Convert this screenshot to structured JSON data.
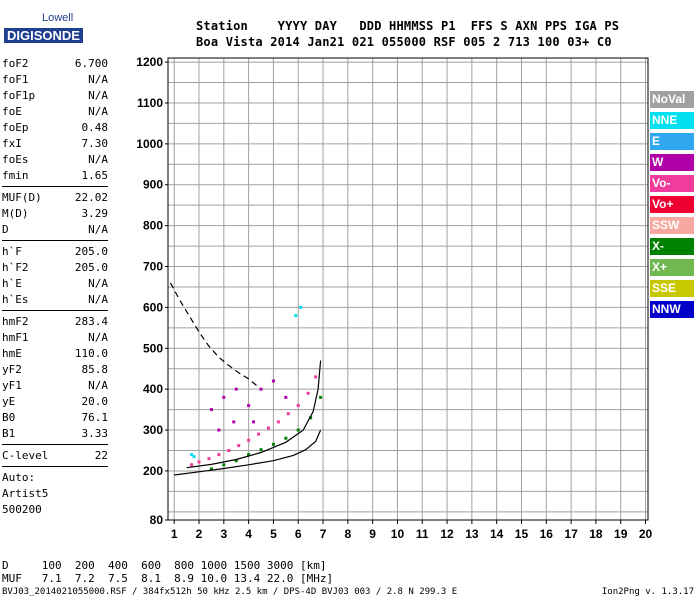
{
  "logo": {
    "line1": "Lowell",
    "line2": "DIGISONDE"
  },
  "header": {
    "labels": "Station    YYYY DAY   DDD HHMMSS P1  FFS S AXN PPS IGA PS",
    "values": "Boa Vista 2014 Jan21 021 055000 RSF 005 2 713 100 03+ C0"
  },
  "params": [
    {
      "name": "foF2",
      "value": "6.700"
    },
    {
      "name": "foF1",
      "value": "N/A"
    },
    {
      "name": "foF1p",
      "value": "N/A"
    },
    {
      "name": "foE",
      "value": "N/A"
    },
    {
      "name": "foEp",
      "value": "0.48"
    },
    {
      "name": "fxI",
      "value": "7.30"
    },
    {
      "name": "foEs",
      "value": "N/A"
    },
    {
      "name": "fmin",
      "value": "1.65"
    },
    {
      "sep": true
    },
    {
      "name": "MUF(D)",
      "value": "22.02"
    },
    {
      "name": "M(D)",
      "value": "3.29"
    },
    {
      "name": "D",
      "value": "N/A"
    },
    {
      "sep": true
    },
    {
      "name": "h`F",
      "value": "205.0"
    },
    {
      "name": "h`F2",
      "value": "205.0"
    },
    {
      "name": "h`E",
      "value": "N/A"
    },
    {
      "name": "h`Es",
      "value": "N/A"
    },
    {
      "sep": true
    },
    {
      "name": "hmF2",
      "value": "283.4"
    },
    {
      "name": "hmF1",
      "value": "N/A"
    },
    {
      "name": "hmE",
      "value": "110.0"
    },
    {
      "name": "yF2",
      "value": "85.8"
    },
    {
      "name": "yF1",
      "value": "N/A"
    },
    {
      "name": "yE",
      "value": "20.0"
    },
    {
      "name": "B0",
      "value": "76.1"
    },
    {
      "name": "B1",
      "value": "3.33"
    },
    {
      "sep": true
    },
    {
      "name": "C-level",
      "value": "22"
    },
    {
      "sep": true
    },
    {
      "text": "Auto:"
    },
    {
      "text": "Artist5"
    },
    {
      "text": "500200"
    }
  ],
  "legend": [
    {
      "label": "NoVal",
      "color": "#a0a0a0"
    },
    {
      "label": "NNE",
      "color": "#00e0f0"
    },
    {
      "label": "E",
      "color": "#30a8f0"
    },
    {
      "label": "W",
      "color": "#b000a8"
    },
    {
      "label": "Vo-",
      "color": "#f03c9c"
    },
    {
      "label": "Vo+",
      "color": "#ee0033"
    },
    {
      "label": "SSW",
      "color": "#f6a8a0"
    },
    {
      "label": "X-",
      "color": "#008000"
    },
    {
      "label": "X+",
      "color": "#70b850"
    },
    {
      "label": "SSE",
      "color": "#c8c800"
    },
    {
      "label": "NNW",
      "color": "#0000c8"
    }
  ],
  "bottom": {
    "d_row": "D     100  200  400  600  800 1000 1500 3000 [km]",
    "muf_row": "MUF   7.1  7.2  7.5  8.1  8.9 10.0 13.4 22.0 [MHz]"
  },
  "footer": {
    "left": "BVJ03_2014021055000.RSF / 384fx512h 50 kHz 2.5 km / DPS-4D BVJ03 003 / 2.8 N 299.3 E",
    "right": "Ion2Png v. 1.3.17"
  },
  "chart_data": {
    "type": "scatter",
    "xlim": [
      0.75,
      20.1
    ],
    "ylim": [
      80,
      1210
    ],
    "x_ticks": [
      1,
      2,
      3,
      4,
      5,
      6,
      7,
      8,
      9,
      10,
      11,
      12,
      13,
      14,
      15,
      16,
      17,
      18,
      19,
      20
    ],
    "y_ticks": [
      80,
      200,
      300,
      400,
      500,
      600,
      700,
      800,
      900,
      1000,
      1100,
      1200
    ],
    "grid": true,
    "series": [
      {
        "name": "Vo-",
        "color": "#f03c9c",
        "points": [
          [
            1.7,
            215
          ],
          [
            2.0,
            222
          ],
          [
            2.4,
            230
          ],
          [
            2.8,
            240
          ],
          [
            3.2,
            250
          ],
          [
            3.6,
            262
          ],
          [
            4.0,
            275
          ],
          [
            4.4,
            290
          ],
          [
            4.8,
            305
          ],
          [
            5.2,
            320
          ],
          [
            5.6,
            340
          ],
          [
            6.0,
            360
          ],
          [
            6.4,
            390
          ],
          [
            6.7,
            430
          ]
        ]
      },
      {
        "name": "W",
        "color": "#b000a8",
        "points": [
          [
            2.5,
            350
          ],
          [
            3.0,
            380
          ],
          [
            3.5,
            400
          ],
          [
            4.0,
            360
          ],
          [
            4.5,
            400
          ],
          [
            5.0,
            420
          ],
          [
            2.8,
            300
          ],
          [
            3.4,
            320
          ],
          [
            4.2,
            320
          ],
          [
            5.5,
            380
          ]
        ]
      },
      {
        "name": "X-",
        "color": "#008000",
        "points": [
          [
            2.5,
            205
          ],
          [
            3.0,
            215
          ],
          [
            3.5,
            225
          ],
          [
            4.0,
            240
          ],
          [
            4.5,
            252
          ],
          [
            5.0,
            265
          ],
          [
            5.5,
            280
          ],
          [
            6.0,
            300
          ],
          [
            6.5,
            330
          ],
          [
            6.9,
            380
          ]
        ]
      },
      {
        "name": "NNE",
        "color": "#00e0f0",
        "points": [
          [
            1.7,
            240
          ],
          [
            1.8,
            235
          ],
          [
            5.9,
            580
          ],
          [
            6.1,
            600
          ]
        ]
      }
    ],
    "curves": {
      "profile_solid": [
        [
          1.0,
          190
        ],
        [
          2.0,
          198
        ],
        [
          3.0,
          206
        ],
        [
          4.0,
          215
        ],
        [
          5.0,
          225
        ],
        [
          5.8,
          238
        ],
        [
          6.3,
          252
        ],
        [
          6.7,
          272
        ],
        [
          6.9,
          300
        ]
      ],
      "trace_solid": [
        [
          1.5,
          208
        ],
        [
          2.5,
          216
        ],
        [
          3.5,
          228
        ],
        [
          4.5,
          245
        ],
        [
          5.5,
          270
        ],
        [
          6.2,
          300
        ],
        [
          6.6,
          345
        ],
        [
          6.8,
          400
        ],
        [
          6.9,
          470
        ]
      ],
      "profile_dashed": [
        [
          0.85,
          660
        ],
        [
          1.2,
          620
        ],
        [
          1.6,
          580
        ],
        [
          2.0,
          540
        ],
        [
          2.4,
          505
        ],
        [
          2.8,
          478
        ],
        [
          3.2,
          458
        ],
        [
          3.6,
          440
        ],
        [
          4.0,
          425
        ],
        [
          4.4,
          405
        ]
      ]
    }
  }
}
